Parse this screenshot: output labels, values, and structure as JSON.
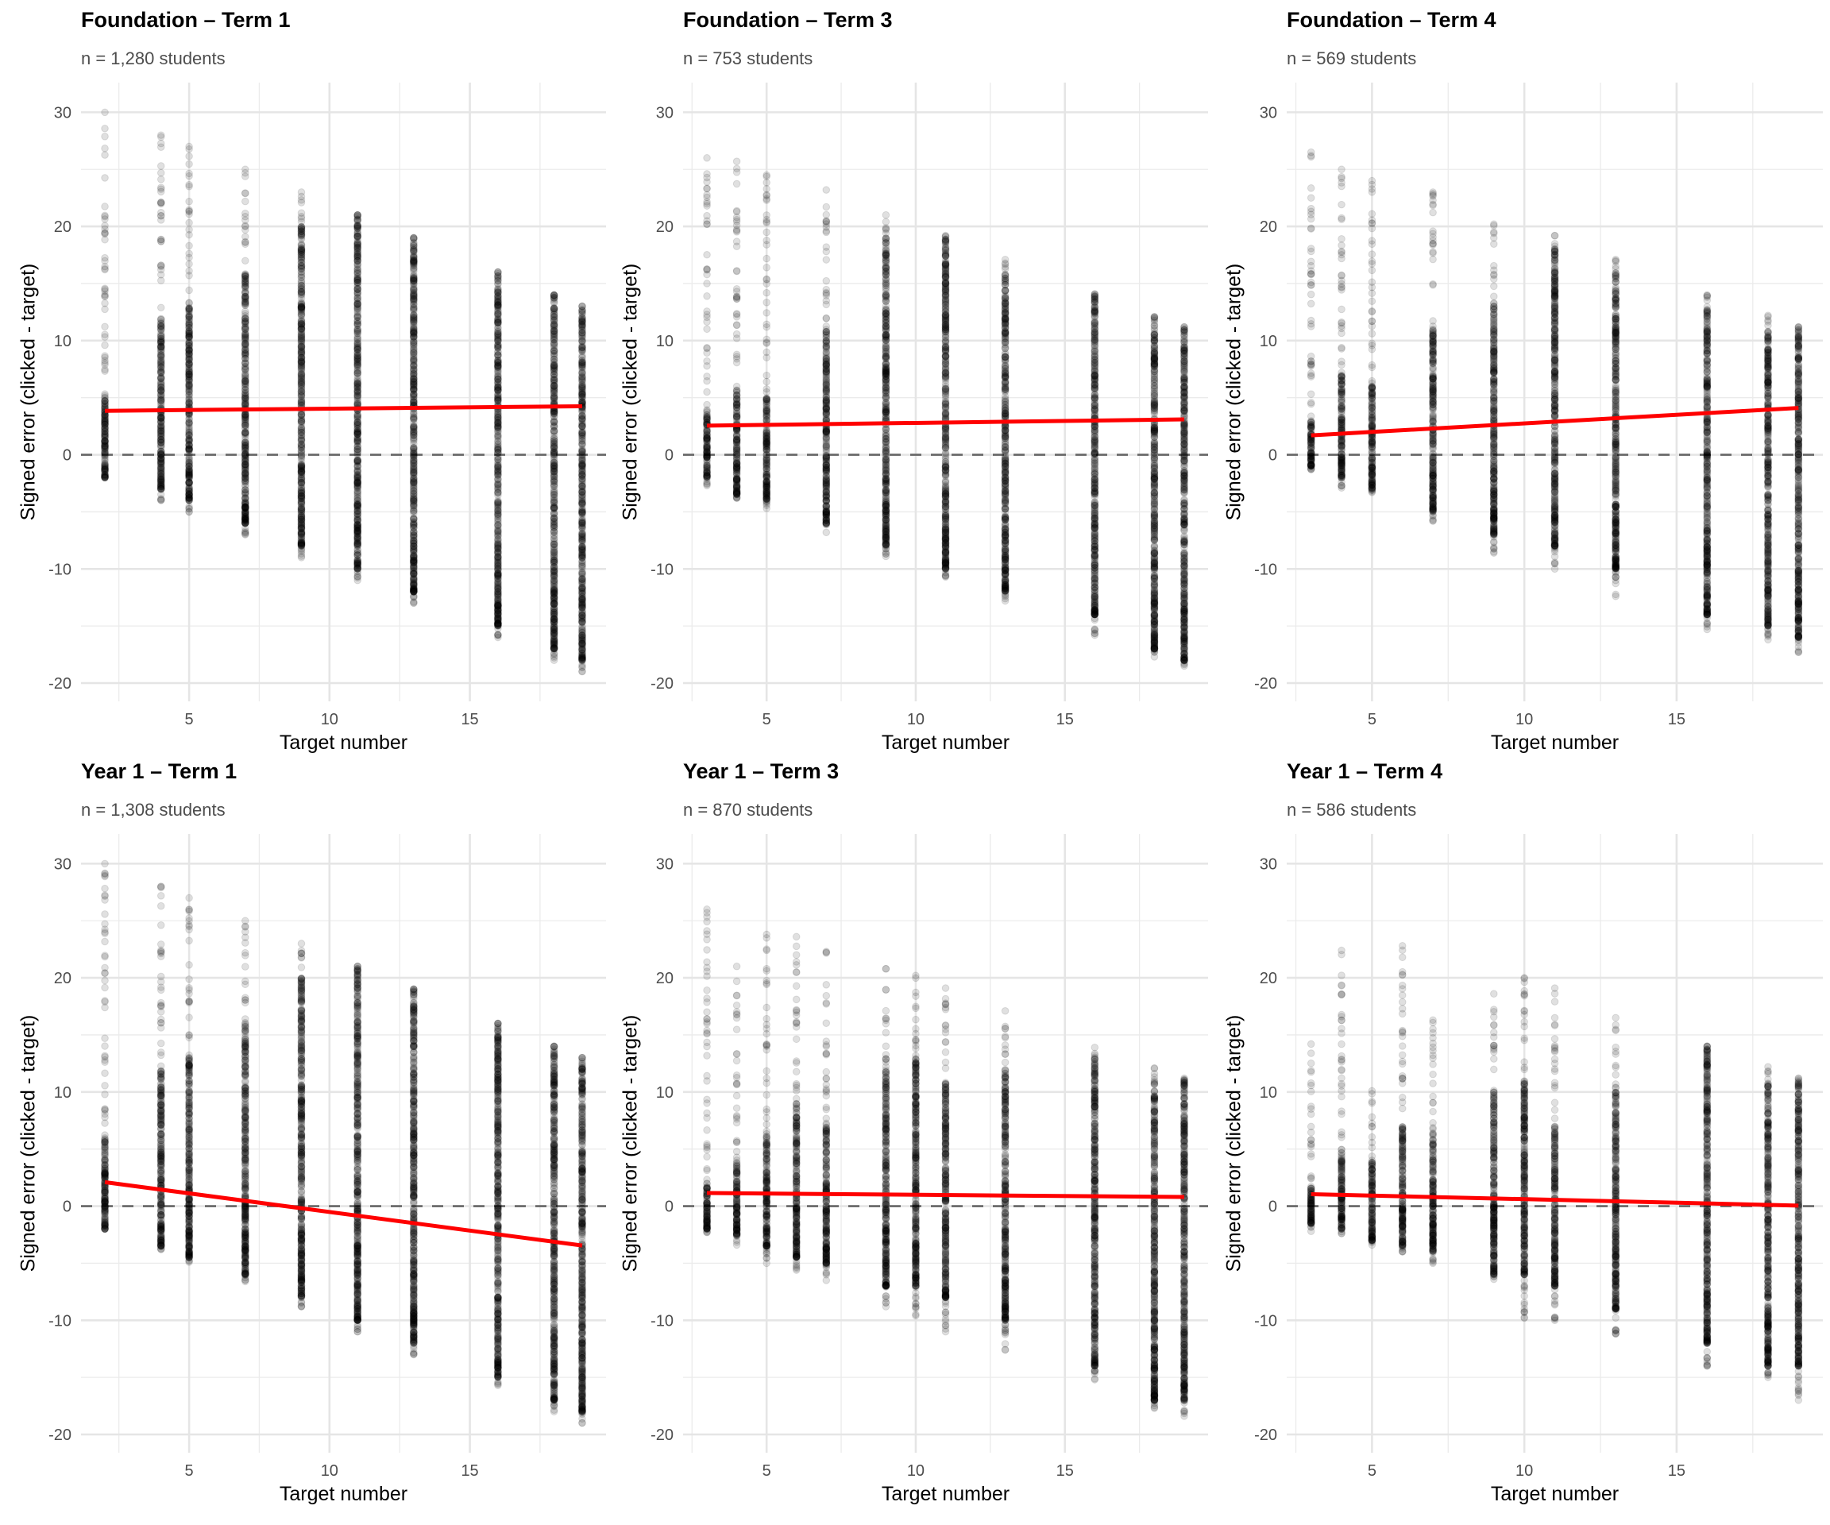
{
  "chart_data": {
    "type": "scatter",
    "layout": "facet-grid 2 rows x 3 columns",
    "shared": {
      "xlabel": "Target number",
      "ylabel": "Signed error (clicked - target)",
      "ylim": [
        -21.6,
        32.6
      ],
      "yticks": [
        -20,
        -10,
        0,
        10,
        20,
        30
      ],
      "xticks": [
        5,
        10,
        15
      ],
      "grid": true,
      "reference_line": {
        "y": 0,
        "style": "dashed",
        "color": "#666666"
      },
      "point_color": "#000000",
      "point_alpha": 0.12,
      "trend_color": "#ff0000"
    },
    "panels": [
      {
        "title": "Foundation – Term 1",
        "subtitle": "n = 1,280 students",
        "xlim": [
          1.15,
          19.85
        ],
        "columns": [
          {
            "target": 2,
            "min": -2,
            "max": 30,
            "dense": [
              -2,
              5
            ]
          },
          {
            "target": 4,
            "min": -4,
            "max": 28,
            "dense": [
              -3,
              12
            ]
          },
          {
            "target": 5,
            "min": -5,
            "max": 27,
            "dense": [
              -4,
              13
            ]
          },
          {
            "target": 7,
            "min": -7,
            "max": 25,
            "dense": [
              -6,
              16
            ]
          },
          {
            "target": 9,
            "min": -9,
            "max": 23,
            "dense": [
              -8,
              20
            ]
          },
          {
            "target": 11,
            "min": -11,
            "max": 21,
            "dense": [
              -10,
              21
            ]
          },
          {
            "target": 13,
            "min": -13,
            "max": 19,
            "dense": [
              -12,
              19
            ]
          },
          {
            "target": 16,
            "min": -16,
            "max": 16,
            "dense": [
              -15,
              16
            ]
          },
          {
            "target": 18,
            "min": -18,
            "max": 14,
            "dense": [
              -17,
              14
            ]
          },
          {
            "target": 19,
            "min": -19,
            "max": 13,
            "dense": [
              -18,
              13
            ]
          }
        ],
        "trend": {
          "x": [
            2,
            19
          ],
          "y": [
            3.85,
            4.25
          ]
        }
      },
      {
        "title": "Foundation – Term 3",
        "subtitle": "n = 753 students",
        "xlim": [
          2.2,
          19.8
        ],
        "columns": [
          {
            "target": 3,
            "min": -2.7,
            "max": 26,
            "dense": [
              -2,
              3.5
            ]
          },
          {
            "target": 4,
            "min": -3.8,
            "max": 25.7,
            "dense": [
              -3.5,
              6
            ]
          },
          {
            "target": 5,
            "min": -4.7,
            "max": 24.5,
            "dense": [
              -4,
              5
            ]
          },
          {
            "target": 7,
            "min": -6.8,
            "max": 23.2,
            "dense": [
              -6,
              11
            ]
          },
          {
            "target": 9,
            "min": -8.9,
            "max": 21,
            "dense": [
              -8,
              19
            ]
          },
          {
            "target": 11,
            "min": -10.7,
            "max": 19.2,
            "dense": [
              -10,
              19
            ]
          },
          {
            "target": 13,
            "min": -12.8,
            "max": 17.1,
            "dense": [
              -12,
              16
            ]
          },
          {
            "target": 16,
            "min": -15.8,
            "max": 14.1,
            "dense": [
              -14,
              14
            ]
          },
          {
            "target": 18,
            "min": -17.7,
            "max": 12.1,
            "dense": [
              -17,
              12
            ]
          },
          {
            "target": 19,
            "min": -18.5,
            "max": 11.2,
            "dense": [
              -18,
              11
            ]
          }
        ],
        "trend": {
          "x": [
            3,
            19
          ],
          "y": [
            2.55,
            3.1
          ]
        }
      },
      {
        "title": "Foundation – Term 4",
        "subtitle": "n = 569 students",
        "xlim": [
          2.2,
          19.8
        ],
        "columns": [
          {
            "target": 3,
            "min": -1.3,
            "max": 26.5,
            "dense": [
              -1,
              3
            ]
          },
          {
            "target": 4,
            "min": -2.9,
            "max": 25,
            "dense": [
              -2,
              7
            ]
          },
          {
            "target": 5,
            "min": -3.3,
            "max": 24,
            "dense": [
              -3,
              6
            ]
          },
          {
            "target": 7,
            "min": -5.8,
            "max": 23,
            "dense": [
              -5,
              11
            ]
          },
          {
            "target": 9,
            "min": -8.6,
            "max": 20.2,
            "dense": [
              -7,
              13
            ]
          },
          {
            "target": 11,
            "min": -10,
            "max": 19.2,
            "dense": [
              -8,
              18
            ]
          },
          {
            "target": 13,
            "min": -12.4,
            "max": 17.1,
            "dense": [
              -10,
              16
            ]
          },
          {
            "target": 16,
            "min": -15.3,
            "max": 14,
            "dense": [
              -14,
              13
            ]
          },
          {
            "target": 18,
            "min": -16.2,
            "max": 12.2,
            "dense": [
              -15,
              11
            ]
          },
          {
            "target": 19,
            "min": -17.3,
            "max": 11.2,
            "dense": [
              -16,
              11
            ]
          }
        ],
        "trend": {
          "x": [
            3,
            19
          ],
          "y": [
            1.7,
            4.1
          ]
        }
      },
      {
        "title": "Year 1 – Term 1",
        "subtitle": "n = 1,308 students",
        "xlim": [
          1.15,
          19.85
        ],
        "columns": [
          {
            "target": 2,
            "min": -2,
            "max": 30,
            "dense": [
              -2,
              6
            ]
          },
          {
            "target": 4,
            "min": -3.8,
            "max": 28,
            "dense": [
              -3.5,
              12
            ]
          },
          {
            "target": 5,
            "min": -4.9,
            "max": 27,
            "dense": [
              -4.5,
              13
            ]
          },
          {
            "target": 7,
            "min": -6.6,
            "max": 25,
            "dense": [
              -6,
              16
            ]
          },
          {
            "target": 9,
            "min": -8.8,
            "max": 23,
            "dense": [
              -8,
              20
            ]
          },
          {
            "target": 11,
            "min": -11,
            "max": 21,
            "dense": [
              -10,
              21
            ]
          },
          {
            "target": 13,
            "min": -13,
            "max": 19,
            "dense": [
              -12,
              19
            ]
          },
          {
            "target": 16,
            "min": -15.7,
            "max": 16,
            "dense": [
              -15,
              16
            ]
          },
          {
            "target": 18,
            "min": -18,
            "max": 14,
            "dense": [
              -17,
              14
            ]
          },
          {
            "target": 19,
            "min": -19,
            "max": 13,
            "dense": [
              -18,
              13
            ]
          }
        ],
        "trend": {
          "x": [
            2,
            19
          ],
          "y": [
            2.1,
            -3.45
          ]
        }
      },
      {
        "title": "Year 1 – Term 3",
        "subtitle": "n = 870 students",
        "xlim": [
          2.2,
          19.8
        ],
        "columns": [
          {
            "target": 3,
            "min": -2.3,
            "max": 26,
            "dense": [
              -2,
              2
            ]
          },
          {
            "target": 4,
            "min": -3.4,
            "max": 21,
            "dense": [
              -2.5,
              4
            ]
          },
          {
            "target": 5,
            "min": -5,
            "max": 23.8,
            "dense": [
              -3.5,
              6
            ]
          },
          {
            "target": 6,
            "min": -5.6,
            "max": 23.6,
            "dense": [
              -4.5,
              9
            ]
          },
          {
            "target": 7,
            "min": -6.5,
            "max": 22.3,
            "dense": [
              -5,
              7
            ]
          },
          {
            "target": 9,
            "min": -8.8,
            "max": 20.8,
            "dense": [
              -7,
              12
            ]
          },
          {
            "target": 10,
            "min": -9.6,
            "max": 20.2,
            "dense": [
              -7,
              13
            ]
          },
          {
            "target": 11,
            "min": -11,
            "max": 19.1,
            "dense": [
              -8,
              11
            ]
          },
          {
            "target": 13,
            "min": -12.6,
            "max": 17.1,
            "dense": [
              -10,
              12
            ]
          },
          {
            "target": 16,
            "min": -15.2,
            "max": 13.9,
            "dense": [
              -14,
              13
            ]
          },
          {
            "target": 18,
            "min": -17.7,
            "max": 12.1,
            "dense": [
              -17,
              11
            ]
          },
          {
            "target": 19,
            "min": -18.4,
            "max": 11.2,
            "dense": [
              -17,
              11
            ]
          }
        ],
        "trend": {
          "x": [
            3,
            19
          ],
          "y": [
            1.15,
            0.8
          ]
        }
      },
      {
        "title": "Year 1 – Term 4",
        "subtitle": "n = 586 students",
        "xlim": [
          2.2,
          19.8
        ],
        "columns": [
          {
            "target": 3,
            "min": -2.2,
            "max": 14.2,
            "dense": [
              -1.5,
              2
            ]
          },
          {
            "target": 4,
            "min": -2.4,
            "max": 22.4,
            "dense": [
              -2,
              5
            ]
          },
          {
            "target": 5,
            "min": -3.4,
            "max": 10.1,
            "dense": [
              -3,
              4
            ]
          },
          {
            "target": 6,
            "min": -4,
            "max": 22.8,
            "dense": [
              -3.5,
              7
            ]
          },
          {
            "target": 7,
            "min": -5,
            "max": 16.3,
            "dense": [
              -4,
              7
            ]
          },
          {
            "target": 9,
            "min": -6.4,
            "max": 18.6,
            "dense": [
              -6,
              10
            ]
          },
          {
            "target": 10,
            "min": -9.8,
            "max": 20,
            "dense": [
              -6,
              11
            ]
          },
          {
            "target": 11,
            "min": -10,
            "max": 19.1,
            "dense": [
              -7,
              7
            ]
          },
          {
            "target": 13,
            "min": -11.2,
            "max": 16.5,
            "dense": [
              -9,
              10
            ]
          },
          {
            "target": 16,
            "min": -14,
            "max": 14,
            "dense": [
              -12,
              14
            ]
          },
          {
            "target": 18,
            "min": -15,
            "max": 12.2,
            "dense": [
              -14,
              11
            ]
          },
          {
            "target": 19,
            "min": -17,
            "max": 11.2,
            "dense": [
              -14,
              11
            ]
          }
        ],
        "trend": {
          "x": [
            3,
            19
          ],
          "y": [
            1.05,
            0.05
          ]
        }
      }
    ]
  }
}
